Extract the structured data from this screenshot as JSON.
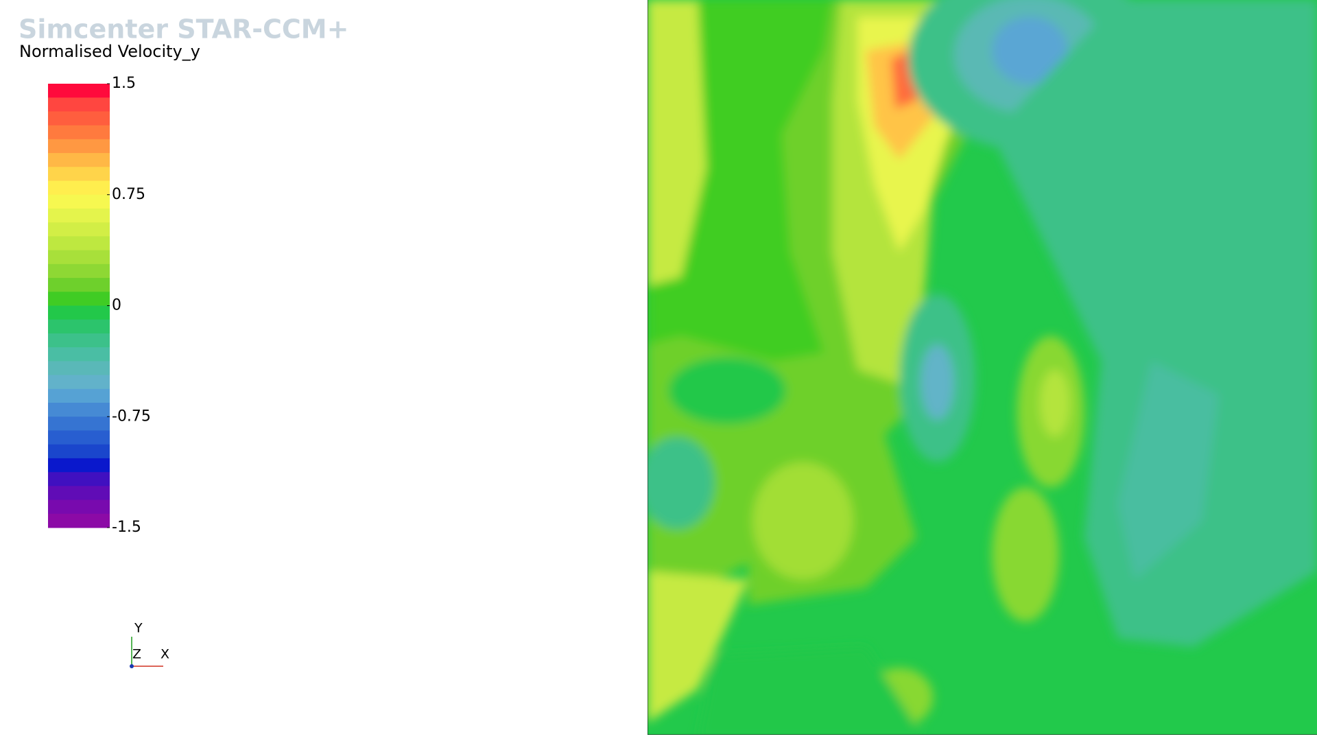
{
  "header": {
    "title": "Simcenter STAR-CCM+"
  },
  "legend": {
    "title": "Normalised Velocity_y",
    "ticks": [
      1.5,
      0.75,
      0,
      -0.75,
      -1.5
    ],
    "colors": [
      "#ff0a3c",
      "#ff4640",
      "#ff5e3e",
      "#ff7a3e",
      "#ff9842",
      "#ffb846",
      "#ffd44a",
      "#ffee4e",
      "#f6f850",
      "#e4f44c",
      "#d2ee46",
      "#bee840",
      "#a8e03a",
      "#8ed834",
      "#6ed02c",
      "#40cc24",
      "#22c84a",
      "#2cc46c",
      "#3cc18a",
      "#4abea4",
      "#5ab8b8",
      "#62b2ca",
      "#56a2d4",
      "#468ad4",
      "#3674d2",
      "#285ed0",
      "#1a46cc",
      "#0a18cc",
      "#4010c0",
      "#600cb6",
      "#780aae",
      "#8c0aa6"
    ]
  },
  "triad": {
    "y": "Y",
    "z": "Z",
    "x": "X"
  }
}
